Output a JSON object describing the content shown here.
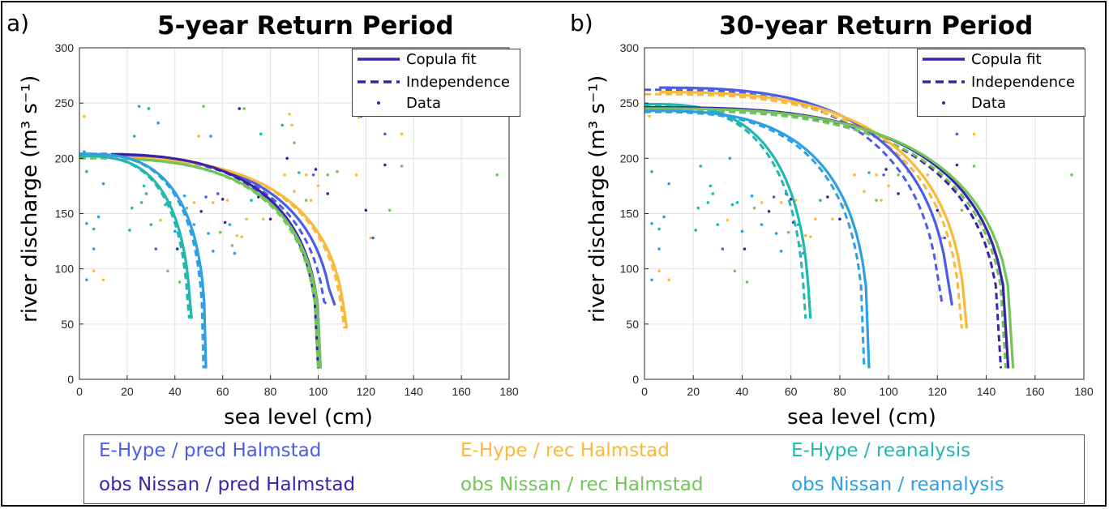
{
  "figure": {
    "bottom_legend": [
      {
        "label": "E-Hype / pred Halmstad",
        "color": "#4B5CE8"
      },
      {
        "label": "E-Hype / rec Halmstad",
        "color": "#FBB93A"
      },
      {
        "label": "E-Hype / reanalysis",
        "color": "#22B8B0"
      },
      {
        "label": "obs Nissan / pred Halmstad",
        "color": "#3A23A8"
      },
      {
        "label": "obs Nissan / rec Halmstad",
        "color": "#72C55A"
      },
      {
        "label": "obs Nissan / reanalysis",
        "color": "#2E9FE3"
      }
    ]
  },
  "chart_data": [
    {
      "panel": "a)",
      "type": "line",
      "title": "5-year Return Period",
      "xlabel": "sea level (cm)",
      "ylabel": "river discharge (m³ s⁻¹)",
      "xlim": [
        0,
        180
      ],
      "ylim": [
        0,
        300
      ],
      "xticks": [
        0,
        20,
        40,
        60,
        80,
        100,
        120,
        140,
        160,
        180
      ],
      "yticks": [
        0,
        50,
        100,
        150,
        200,
        250,
        300
      ],
      "grid": true,
      "legend": {
        "placement": "top-right",
        "entries": [
          "Copula fit",
          "Independence",
          "Data"
        ]
      },
      "series": [
        {
          "name": "E-Hype / pred Halmstad",
          "color": "#4B5CE8",
          "copula": {
            "x_start": 20,
            "y_top": 202,
            "x_asym": 107,
            "y_min": 67
          },
          "independence": {
            "x_start": 0,
            "y_top": 202,
            "x_asym": 104,
            "y_min": 67
          }
        },
        {
          "name": "E-Hype / rec Halmstad",
          "color": "#FBB93A",
          "copula": {
            "x_start": 18,
            "y_top": 201,
            "x_asym": 112,
            "y_min": 46
          },
          "independence": {
            "x_start": 0,
            "y_top": 201,
            "x_asym": 111,
            "y_min": 46
          }
        },
        {
          "name": "E-Hype / reanalysis",
          "color": "#22B8B0",
          "copula": {
            "x_start": 0,
            "y_top": 202,
            "x_asym": 47,
            "y_min": 55
          },
          "independence": {
            "x_start": 0,
            "y_top": 202,
            "x_asym": 46,
            "y_min": 55
          }
        },
        {
          "name": "obs Nissan / pred Halmstad",
          "color": "#3A23A8",
          "copula": {
            "x_start": 16,
            "y_top": 204,
            "x_asym": 101,
            "y_min": 10
          },
          "independence": {
            "x_start": 0,
            "y_top": 204,
            "x_asym": 100,
            "y_min": 10
          }
        },
        {
          "name": "obs Nissan / rec Halmstad",
          "color": "#72C55A",
          "copula": {
            "x_start": 20,
            "y_top": 200,
            "x_asym": 101,
            "y_min": 10
          },
          "independence": {
            "x_start": 0,
            "y_top": 200,
            "x_asym": 100,
            "y_min": 10
          }
        },
        {
          "name": "obs Nissan / reanalysis",
          "color": "#2E9FE3",
          "copula": {
            "x_start": 0,
            "y_top": 204,
            "x_asym": 53,
            "y_min": 10
          },
          "independence": {
            "x_start": 0,
            "y_top": 204,
            "x_asym": 52,
            "y_min": 10
          }
        }
      ],
      "data_points": [
        [
          2,
          238,
          "#FBB93A"
        ],
        [
          2,
          206,
          "#2E9FE3"
        ],
        [
          3,
          188,
          "#22B8B0"
        ],
        [
          3,
          141,
          "#2E9FE3"
        ],
        [
          3,
          90,
          "#2E9FE3"
        ],
        [
          6,
          118,
          "#2E9FE3"
        ],
        [
          6,
          98,
          "#FBB93A"
        ],
        [
          6,
          136,
          "#22B8B0"
        ],
        [
          8,
          147,
          "#2E9FE3"
        ],
        [
          10,
          177,
          "#2E9FE3"
        ],
        [
          10,
          90,
          "#FBB93A"
        ],
        [
          21,
          135,
          "#22B8B0"
        ],
        [
          22,
          155,
          "#22B8B0"
        ],
        [
          23,
          220,
          "#22B8B0"
        ],
        [
          25,
          247,
          "#2E9FE3"
        ],
        [
          26,
          160,
          "#22B8B0"
        ],
        [
          27,
          175,
          "#22B8B0"
        ],
        [
          28,
          168,
          "#22B8B0"
        ],
        [
          29,
          245,
          "#22B8B0"
        ],
        [
          30,
          140,
          "#22B8B0"
        ],
        [
          32,
          118,
          "#4B5CE8"
        ],
        [
          33,
          232,
          "#2E9FE3"
        ],
        [
          34,
          144,
          "#FBB93A"
        ],
        [
          35,
          200,
          "#2E9FE3"
        ],
        [
          36,
          158,
          "#22B8B0"
        ],
        [
          37,
          98,
          "#72C55A"
        ],
        [
          38,
          160,
          "#22B8B0"
        ],
        [
          40,
          134,
          "#2E9FE3"
        ],
        [
          41,
          118,
          "#3A23A8"
        ],
        [
          42,
          88,
          "#72C55A"
        ],
        [
          44,
          166,
          "#2E9FE3"
        ],
        [
          45,
          155,
          "#72C55A"
        ],
        [
          48,
          160,
          "#FBB93A"
        ],
        [
          48,
          140,
          "#2E9FE3"
        ],
        [
          50,
          220,
          "#FBB93A"
        ],
        [
          51,
          152,
          "#3A23A8"
        ],
        [
          52,
          247,
          "#72C55A"
        ],
        [
          53,
          165,
          "#4B5CE8"
        ],
        [
          54,
          132,
          "#2E9FE3"
        ],
        [
          55,
          220,
          "#2E9FE3"
        ],
        [
          56,
          116,
          "#2E9FE3"
        ],
        [
          56,
          160,
          "#FBB93A"
        ],
        [
          58,
          168,
          "#4B5CE8"
        ],
        [
          59,
          133,
          "#72C55A"
        ],
        [
          60,
          163,
          "#3A23A8"
        ],
        [
          61,
          142,
          "#3A23A8"
        ],
        [
          62,
          162,
          "#FBB93A"
        ],
        [
          63,
          140,
          "#2E9FE3"
        ],
        [
          64,
          121,
          "#72C55A"
        ],
        [
          65,
          114,
          "#2E9FE3"
        ],
        [
          66,
          130,
          "#FBB93A"
        ],
        [
          67,
          245,
          "#3A23A8"
        ],
        [
          68,
          129,
          "#FBB93A"
        ],
        [
          69,
          245,
          "#72C55A"
        ],
        [
          70,
          145,
          "#FBB93A"
        ],
        [
          72,
          162,
          "#22B8B0"
        ],
        [
          75,
          165,
          "#3A23A8"
        ],
        [
          76,
          222,
          "#22B8B0"
        ],
        [
          77,
          145,
          "#FBB93A"
        ],
        [
          80,
          145,
          "#3A23A8"
        ],
        [
          82,
          158,
          "#FBB93A"
        ],
        [
          85,
          230,
          "#22B8B0"
        ],
        [
          86,
          185,
          "#FBB93A"
        ],
        [
          87,
          200,
          "#3A23A8"
        ],
        [
          88,
          240,
          "#FBB93A"
        ],
        [
          89,
          230,
          "#FBB93A"
        ],
        [
          90,
          170,
          "#FBB93A"
        ],
        [
          90,
          214,
          "#72C55A"
        ],
        [
          92,
          187,
          "#22B8B0"
        ],
        [
          95,
          185,
          "#FBB93A"
        ],
        [
          95,
          162,
          "#72C55A"
        ],
        [
          97,
          162,
          "#FBB93A"
        ],
        [
          98,
          185,
          "#4B5CE8"
        ],
        [
          99,
          190,
          "#3A23A8"
        ],
        [
          100,
          175,
          "#FBB93A"
        ],
        [
          104,
          168,
          "#3A23A8"
        ],
        [
          104,
          185,
          "#72C55A"
        ],
        [
          108,
          188,
          "#72C55A"
        ],
        [
          116,
          185,
          "#FBB93A"
        ],
        [
          117,
          237,
          "#FBB93A"
        ],
        [
          118,
          238,
          "#4B5CE8"
        ],
        [
          120,
          153,
          "#3A23A8"
        ],
        [
          122,
          128,
          "#FBB93A"
        ],
        [
          123,
          128,
          "#4B5CE8"
        ],
        [
          128,
          222,
          "#4B5CE8"
        ],
        [
          128,
          194,
          "#3A23A8"
        ],
        [
          130,
          153,
          "#72C55A"
        ],
        [
          135,
          222,
          "#FBB93A"
        ],
        [
          135,
          193,
          "#72C55A"
        ],
        [
          175,
          185,
          "#72C55A"
        ]
      ]
    },
    {
      "panel": "b)",
      "type": "line",
      "title": "30-year Return Period",
      "xlabel": "sea level (cm)",
      "ylabel": "river discharge (m³ s⁻¹)",
      "xlim": [
        0,
        180
      ],
      "ylim": [
        0,
        300
      ],
      "xticks": [
        0,
        20,
        40,
        60,
        80,
        100,
        120,
        140,
        160,
        180
      ],
      "yticks": [
        0,
        50,
        100,
        150,
        200,
        250,
        300
      ],
      "grid": true,
      "legend": {
        "placement": "top-right",
        "entries": [
          "Copula fit",
          "Independence",
          "Data"
        ]
      },
      "series": [
        {
          "name": "E-Hype / pred Halmstad",
          "color": "#4B5CE8",
          "copula": {
            "x_start": 6,
            "y_top": 264,
            "x_asym": 126,
            "y_min": 67
          },
          "independence": {
            "x_start": 0,
            "y_top": 262,
            "x_asym": 122,
            "y_min": 67
          }
        },
        {
          "name": "E-Hype / rec Halmstad",
          "color": "#FBB93A",
          "copula": {
            "x_start": 6,
            "y_top": 260,
            "x_asym": 132,
            "y_min": 46
          },
          "independence": {
            "x_start": 0,
            "y_top": 258,
            "x_asym": 130,
            "y_min": 46
          }
        },
        {
          "name": "E-Hype / reanalysis",
          "color": "#22B8B0",
          "copula": {
            "x_start": 0,
            "y_top": 249,
            "x_asym": 68,
            "y_min": 55
          },
          "independence": {
            "x_start": 0,
            "y_top": 248,
            "x_asym": 66,
            "y_min": 55
          }
        },
        {
          "name": "obs Nissan / pred Halmstad",
          "color": "#3A23A8",
          "copula": {
            "x_start": 0,
            "y_top": 246,
            "x_asym": 149,
            "y_min": 10
          },
          "independence": {
            "x_start": 0,
            "y_top": 244,
            "x_asym": 146,
            "y_min": 10
          }
        },
        {
          "name": "obs Nissan / rec Halmstad",
          "color": "#72C55A",
          "copula": {
            "x_start": 0,
            "y_top": 245,
            "x_asym": 151,
            "y_min": 10
          },
          "independence": {
            "x_start": 0,
            "y_top": 243,
            "x_asym": 148,
            "y_min": 10
          }
        },
        {
          "name": "obs Nissan / reanalysis",
          "color": "#2E9FE3",
          "copula": {
            "x_start": 0,
            "y_top": 243,
            "x_asym": 92,
            "y_min": 10
          },
          "independence": {
            "x_start": 0,
            "y_top": 242,
            "x_asym": 90,
            "y_min": 10
          }
        }
      ],
      "data_points": [
        [
          2,
          238,
          "#FBB93A"
        ],
        [
          3,
          188,
          "#22B8B0"
        ],
        [
          3,
          141,
          "#2E9FE3"
        ],
        [
          3,
          90,
          "#2E9FE3"
        ],
        [
          6,
          118,
          "#2E9FE3"
        ],
        [
          6,
          98,
          "#FBB93A"
        ],
        [
          6,
          136,
          "#22B8B0"
        ],
        [
          8,
          147,
          "#2E9FE3"
        ],
        [
          10,
          177,
          "#2E9FE3"
        ],
        [
          10,
          90,
          "#FBB93A"
        ],
        [
          21,
          135,
          "#22B8B0"
        ],
        [
          22,
          155,
          "#22B8B0"
        ],
        [
          23,
          193,
          "#22B8B0"
        ],
        [
          26,
          160,
          "#22B8B0"
        ],
        [
          27,
          175,
          "#22B8B0"
        ],
        [
          28,
          168,
          "#22B8B0"
        ],
        [
          30,
          140,
          "#22B8B0"
        ],
        [
          32,
          118,
          "#4B5CE8"
        ],
        [
          34,
          144,
          "#FBB93A"
        ],
        [
          35,
          200,
          "#2E9FE3"
        ],
        [
          36,
          158,
          "#22B8B0"
        ],
        [
          37,
          98,
          "#72C55A"
        ],
        [
          38,
          160,
          "#22B8B0"
        ],
        [
          40,
          134,
          "#2E9FE3"
        ],
        [
          41,
          118,
          "#3A23A8"
        ],
        [
          42,
          88,
          "#72C55A"
        ],
        [
          44,
          166,
          "#2E9FE3"
        ],
        [
          45,
          155,
          "#72C55A"
        ],
        [
          48,
          160,
          "#FBB93A"
        ],
        [
          48,
          140,
          "#2E9FE3"
        ],
        [
          51,
          152,
          "#3A23A8"
        ],
        [
          53,
          165,
          "#4B5CE8"
        ],
        [
          54,
          132,
          "#2E9FE3"
        ],
        [
          56,
          116,
          "#2E9FE3"
        ],
        [
          56,
          160,
          "#FBB93A"
        ],
        [
          58,
          168,
          "#4B5CE8"
        ],
        [
          59,
          133,
          "#72C55A"
        ],
        [
          60,
          163,
          "#3A23A8"
        ],
        [
          61,
          142,
          "#3A23A8"
        ],
        [
          62,
          162,
          "#FBB93A"
        ],
        [
          63,
          140,
          "#2E9FE3"
        ],
        [
          64,
          121,
          "#72C55A"
        ],
        [
          65,
          114,
          "#2E9FE3"
        ],
        [
          66,
          130,
          "#FBB93A"
        ],
        [
          68,
          129,
          "#FBB93A"
        ],
        [
          70,
          145,
          "#FBB93A"
        ],
        [
          72,
          162,
          "#22B8B0"
        ],
        [
          75,
          165,
          "#3A23A8"
        ],
        [
          77,
          145,
          "#FBB93A"
        ],
        [
          80,
          145,
          "#3A23A8"
        ],
        [
          82,
          158,
          "#FBB93A"
        ],
        [
          86,
          185,
          "#FBB93A"
        ],
        [
          90,
          170,
          "#FBB93A"
        ],
        [
          92,
          187,
          "#22B8B0"
        ],
        [
          95,
          185,
          "#FBB93A"
        ],
        [
          95,
          162,
          "#72C55A"
        ],
        [
          97,
          162,
          "#FBB93A"
        ],
        [
          98,
          185,
          "#4B5CE8"
        ],
        [
          99,
          190,
          "#3A23A8"
        ],
        [
          100,
          175,
          "#FBB93A"
        ],
        [
          104,
          168,
          "#3A23A8"
        ],
        [
          104,
          185,
          "#72C55A"
        ],
        [
          108,
          188,
          "#72C55A"
        ],
        [
          116,
          185,
          "#FBB93A"
        ],
        [
          120,
          153,
          "#3A23A8"
        ],
        [
          122,
          128,
          "#FBB93A"
        ],
        [
          123,
          128,
          "#4B5CE8"
        ],
        [
          128,
          222,
          "#4B5CE8"
        ],
        [
          128,
          194,
          "#3A23A8"
        ],
        [
          130,
          153,
          "#72C55A"
        ],
        [
          135,
          222,
          "#FBB93A"
        ],
        [
          135,
          193,
          "#72C55A"
        ],
        [
          175,
          185,
          "#72C55A"
        ]
      ]
    }
  ]
}
